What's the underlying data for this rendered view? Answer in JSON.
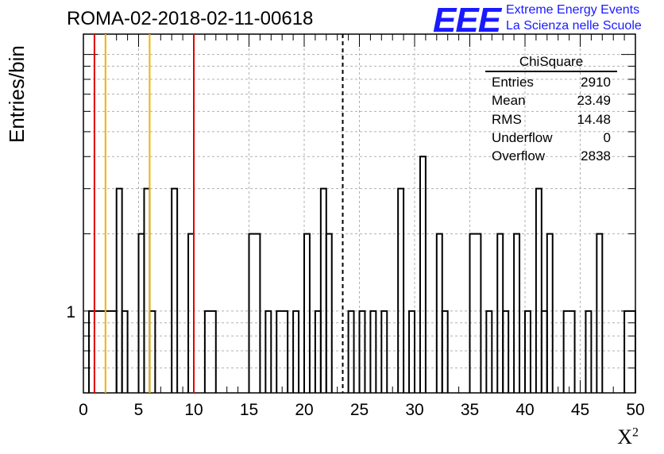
{
  "header": {
    "title": "ROMA-02-2018-02-11-00618",
    "logo_text": "EEE",
    "logo_line1": "Extreme Energy Events",
    "logo_line2": "La Scienza nelle Scuole"
  },
  "stats": {
    "title": "ChiSquare",
    "rows": [
      {
        "label": "Entries",
        "value": "2910"
      },
      {
        "label": "Mean",
        "value": "23.49"
      },
      {
        "label": "RMS",
        "value": "14.48"
      },
      {
        "label": "Underflow",
        "value": "0"
      },
      {
        "label": "Overflow",
        "value": "2838"
      }
    ]
  },
  "chart_data": {
    "type": "bar",
    "style": "step-histogram",
    "title": "ROMA-02-2018-02-11-00618",
    "xlabel": "X",
    "xlabel_superscript": "2",
    "ylabel": "Entries/bin",
    "xlim": [
      0,
      50
    ],
    "ylim": [
      0.48,
      12
    ],
    "y_scale": "log",
    "bin_width": 1,
    "x_ticks": [
      "0",
      "5",
      "10",
      "15",
      "20",
      "25",
      "30",
      "35",
      "40",
      "45",
      "50"
    ],
    "y_tick_labels": [
      {
        "value": 1,
        "label": "1"
      }
    ],
    "grid": true,
    "bins": [
      {
        "x0": 0.5,
        "x1": 3.0,
        "count": 1
      },
      {
        "x0": 3.0,
        "x1": 3.5,
        "count": 3
      },
      {
        "x0": 3.5,
        "x1": 4.0,
        "count": 1
      },
      {
        "x0": 5.0,
        "x1": 5.5,
        "count": 2
      },
      {
        "x0": 5.5,
        "x1": 6.0,
        "count": 3
      },
      {
        "x0": 6.0,
        "x1": 6.5,
        "count": 1
      },
      {
        "x0": 8.0,
        "x1": 8.5,
        "count": 3
      },
      {
        "x0": 9.5,
        "x1": 10.0,
        "count": 2
      },
      {
        "x0": 11.0,
        "x1": 12.0,
        "count": 1
      },
      {
        "x0": 15.0,
        "x1": 16.0,
        "count": 2
      },
      {
        "x0": 16.5,
        "x1": 17.0,
        "count": 1
      },
      {
        "x0": 17.5,
        "x1": 18.5,
        "count": 1
      },
      {
        "x0": 19.0,
        "x1": 19.5,
        "count": 1
      },
      {
        "x0": 20.0,
        "x1": 20.5,
        "count": 2
      },
      {
        "x0": 21.0,
        "x1": 21.5,
        "count": 1
      },
      {
        "x0": 21.5,
        "x1": 22.0,
        "count": 3
      },
      {
        "x0": 22.0,
        "x1": 22.5,
        "count": 2
      },
      {
        "x0": 24.0,
        "x1": 24.5,
        "count": 1
      },
      {
        "x0": 25.0,
        "x1": 25.5,
        "count": 1
      },
      {
        "x0": 26.0,
        "x1": 26.5,
        "count": 1
      },
      {
        "x0": 27.0,
        "x1": 27.5,
        "count": 1
      },
      {
        "x0": 28.5,
        "x1": 29.0,
        "count": 3
      },
      {
        "x0": 29.5,
        "x1": 30.0,
        "count": 1
      },
      {
        "x0": 30.5,
        "x1": 31.0,
        "count": 4
      },
      {
        "x0": 32.0,
        "x1": 32.5,
        "count": 2
      },
      {
        "x0": 32.5,
        "x1": 33.0,
        "count": 1
      },
      {
        "x0": 35.0,
        "x1": 36.0,
        "count": 2
      },
      {
        "x0": 36.5,
        "x1": 37.0,
        "count": 1
      },
      {
        "x0": 37.5,
        "x1": 38.0,
        "count": 2
      },
      {
        "x0": 38.0,
        "x1": 38.5,
        "count": 1
      },
      {
        "x0": 39.0,
        "x1": 39.5,
        "count": 2
      },
      {
        "x0": 40.0,
        "x1": 40.5,
        "count": 1
      },
      {
        "x0": 41.0,
        "x1": 41.5,
        "count": 3
      },
      {
        "x0": 41.5,
        "x1": 42.0,
        "count": 1
      },
      {
        "x0": 42.0,
        "x1": 42.5,
        "count": 2
      },
      {
        "x0": 43.5,
        "x1": 44.5,
        "count": 1
      },
      {
        "x0": 45.5,
        "x1": 46.0,
        "count": 1
      },
      {
        "x0": 46.5,
        "x1": 47.0,
        "count": 2
      },
      {
        "x0": 49.0,
        "x1": 50.0,
        "count": 1
      }
    ],
    "reference_lines": [
      {
        "x": 1.0,
        "color": "#e00000",
        "style": "solid"
      },
      {
        "x": 2.0,
        "color": "#f0b400",
        "style": "solid"
      },
      {
        "x": 6.0,
        "color": "#f0b400",
        "style": "solid"
      },
      {
        "x": 10.0,
        "color": "#e00000",
        "style": "solid"
      },
      {
        "x": 23.49,
        "color": "#000000",
        "style": "dashed"
      }
    ]
  }
}
